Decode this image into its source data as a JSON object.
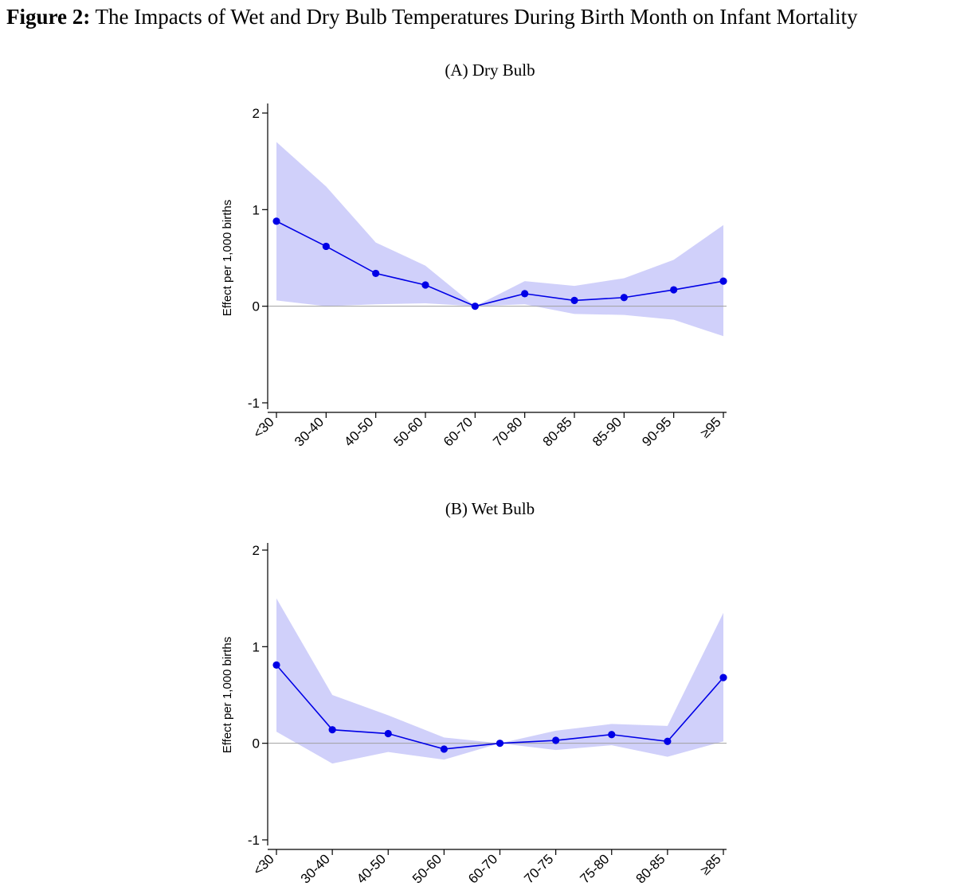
{
  "figure": {
    "label": "Figure 2:",
    "title": "The Impacts of Wet and Dry Bulb Temperatures During Birth Month on Infant Mortality"
  },
  "chart_data": [
    {
      "type": "line",
      "panel_title": "(A) Dry Bulb",
      "ylabel": "Effect per 1,000 births",
      "xlabel": "",
      "ylim": [
        -1,
        2
      ],
      "yticks": [
        2,
        1,
        0,
        -1
      ],
      "categories": [
        "<30",
        "30-40",
        "40-50",
        "50-60",
        "60-70",
        "70-80",
        "80-85",
        "85-90",
        "90-95",
        "≥95"
      ],
      "series": [
        {
          "values": [
            0.88,
            0.62,
            0.34,
            0.22,
            0.0,
            0.13,
            0.06,
            0.09,
            0.17,
            0.26
          ],
          "ci_lower": [
            0.06,
            0.0,
            0.02,
            0.03,
            0.0,
            0.02,
            -0.08,
            -0.09,
            -0.14,
            -0.31
          ],
          "ci_upper": [
            1.7,
            1.24,
            0.66,
            0.42,
            0.0,
            0.26,
            0.21,
            0.29,
            0.48,
            0.84
          ]
        }
      ],
      "reference_line": 0,
      "colors": {
        "line": "#0000e6",
        "band": "#d0d0fa",
        "reference": "#a0a0a0"
      }
    },
    {
      "type": "line",
      "panel_title": "(B) Wet Bulb",
      "ylabel": "Effect per 1,000 births",
      "xlabel": "",
      "ylim": [
        -1,
        2
      ],
      "yticks": [
        2,
        1,
        0,
        -1
      ],
      "categories": [
        "<30",
        "30-40",
        "40-50",
        "50-60",
        "60-70",
        "70-75",
        "75-80",
        "80-85",
        "≥85"
      ],
      "series": [
        {
          "values": [
            0.81,
            0.14,
            0.1,
            -0.06,
            0.0,
            0.03,
            0.09,
            0.02,
            0.68
          ],
          "ci_lower": [
            0.12,
            -0.21,
            -0.09,
            -0.17,
            0.0,
            -0.07,
            -0.02,
            -0.14,
            0.02
          ],
          "ci_upper": [
            1.5,
            0.5,
            0.29,
            0.06,
            0.0,
            0.13,
            0.2,
            0.18,
            1.35
          ]
        }
      ],
      "reference_line": 0,
      "colors": {
        "line": "#0000e6",
        "band": "#d0d0fa",
        "reference": "#a0a0a0"
      }
    }
  ]
}
